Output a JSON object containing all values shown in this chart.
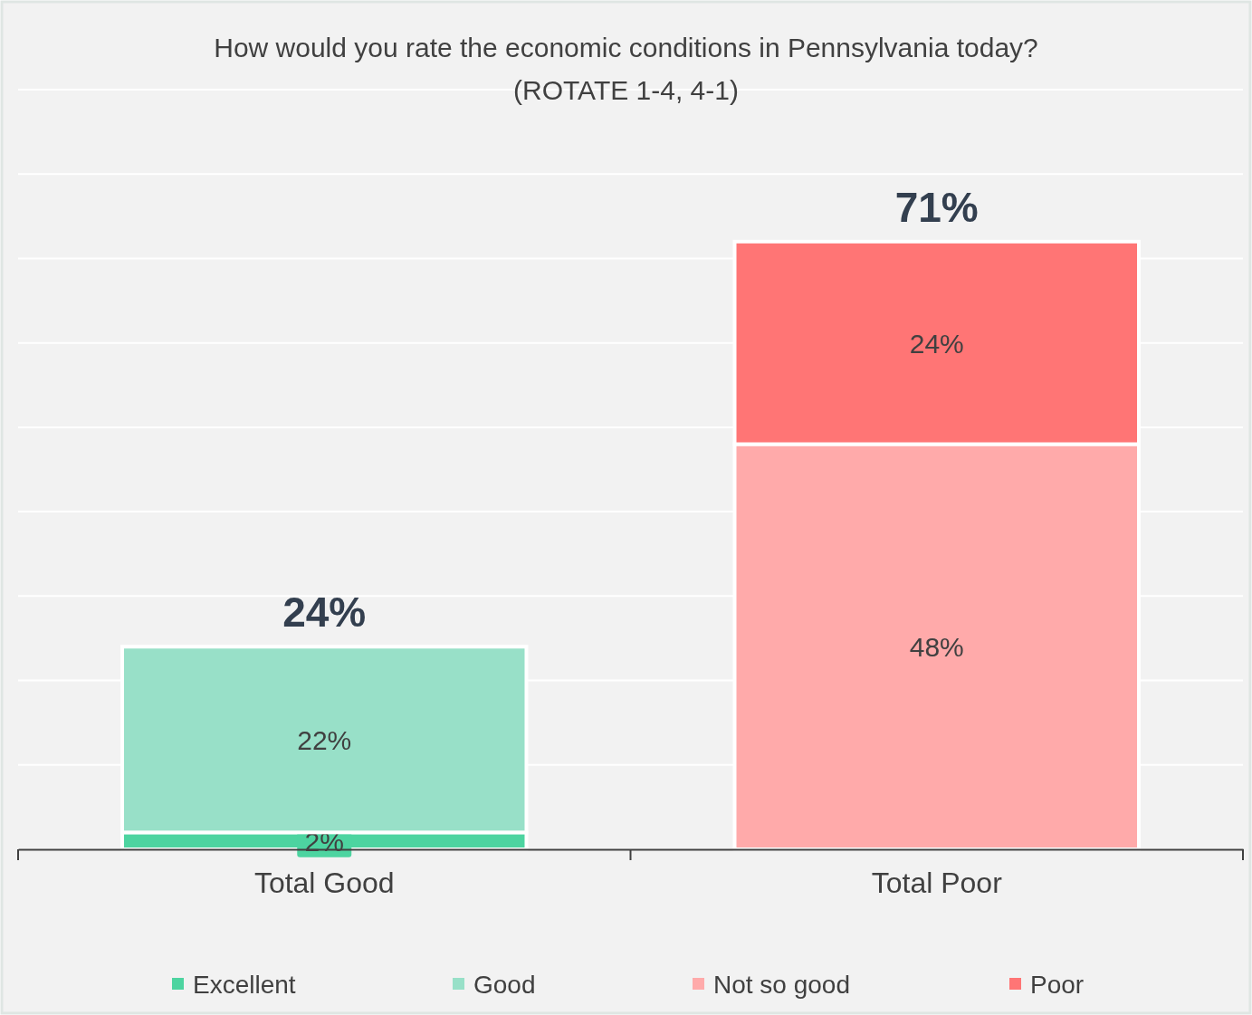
{
  "chart_data": {
    "type": "bar",
    "title": "How would you rate the economic conditions in Pennsylvania today?",
    "subtitle": "(ROTATE 1-4, 4-1)",
    "categories": [
      "Total Good",
      "Total Poor"
    ],
    "stacked": true,
    "series": [
      {
        "name": "Excellent",
        "color": "#4dd4a0",
        "values": [
          2,
          null
        ],
        "value_labels": [
          "2%",
          null
        ]
      },
      {
        "name": "Good",
        "color": "#98e0c8",
        "values": [
          22,
          null
        ],
        "value_labels": [
          "22%",
          null
        ]
      },
      {
        "name": "Not so good",
        "color": "#ffaaaa",
        "values": [
          null,
          48
        ],
        "value_labels": [
          null,
          "48%"
        ]
      },
      {
        "name": "Poor",
        "color": "#ff7575",
        "values": [
          null,
          24
        ],
        "value_labels": [
          null,
          "24%"
        ]
      }
    ],
    "totals": [
      "24%",
      "71%"
    ],
    "ylim": [
      0,
      90
    ],
    "yticks": [
      {
        "value": 0,
        "label": null
      },
      {
        "value": 10,
        "label": null
      },
      {
        "value": 20,
        "label": null
      },
      {
        "value": 30,
        "label": null
      },
      {
        "value": 40,
        "label": null
      },
      {
        "value": 50,
        "label": null
      },
      {
        "value": 60,
        "label": null
      },
      {
        "value": 70,
        "label": null
      },
      {
        "value": 80,
        "label": null
      },
      {
        "value": 90,
        "label": null
      }
    ],
    "tick_labels": "x",
    "grid": "y",
    "legend": "bottom"
  }
}
